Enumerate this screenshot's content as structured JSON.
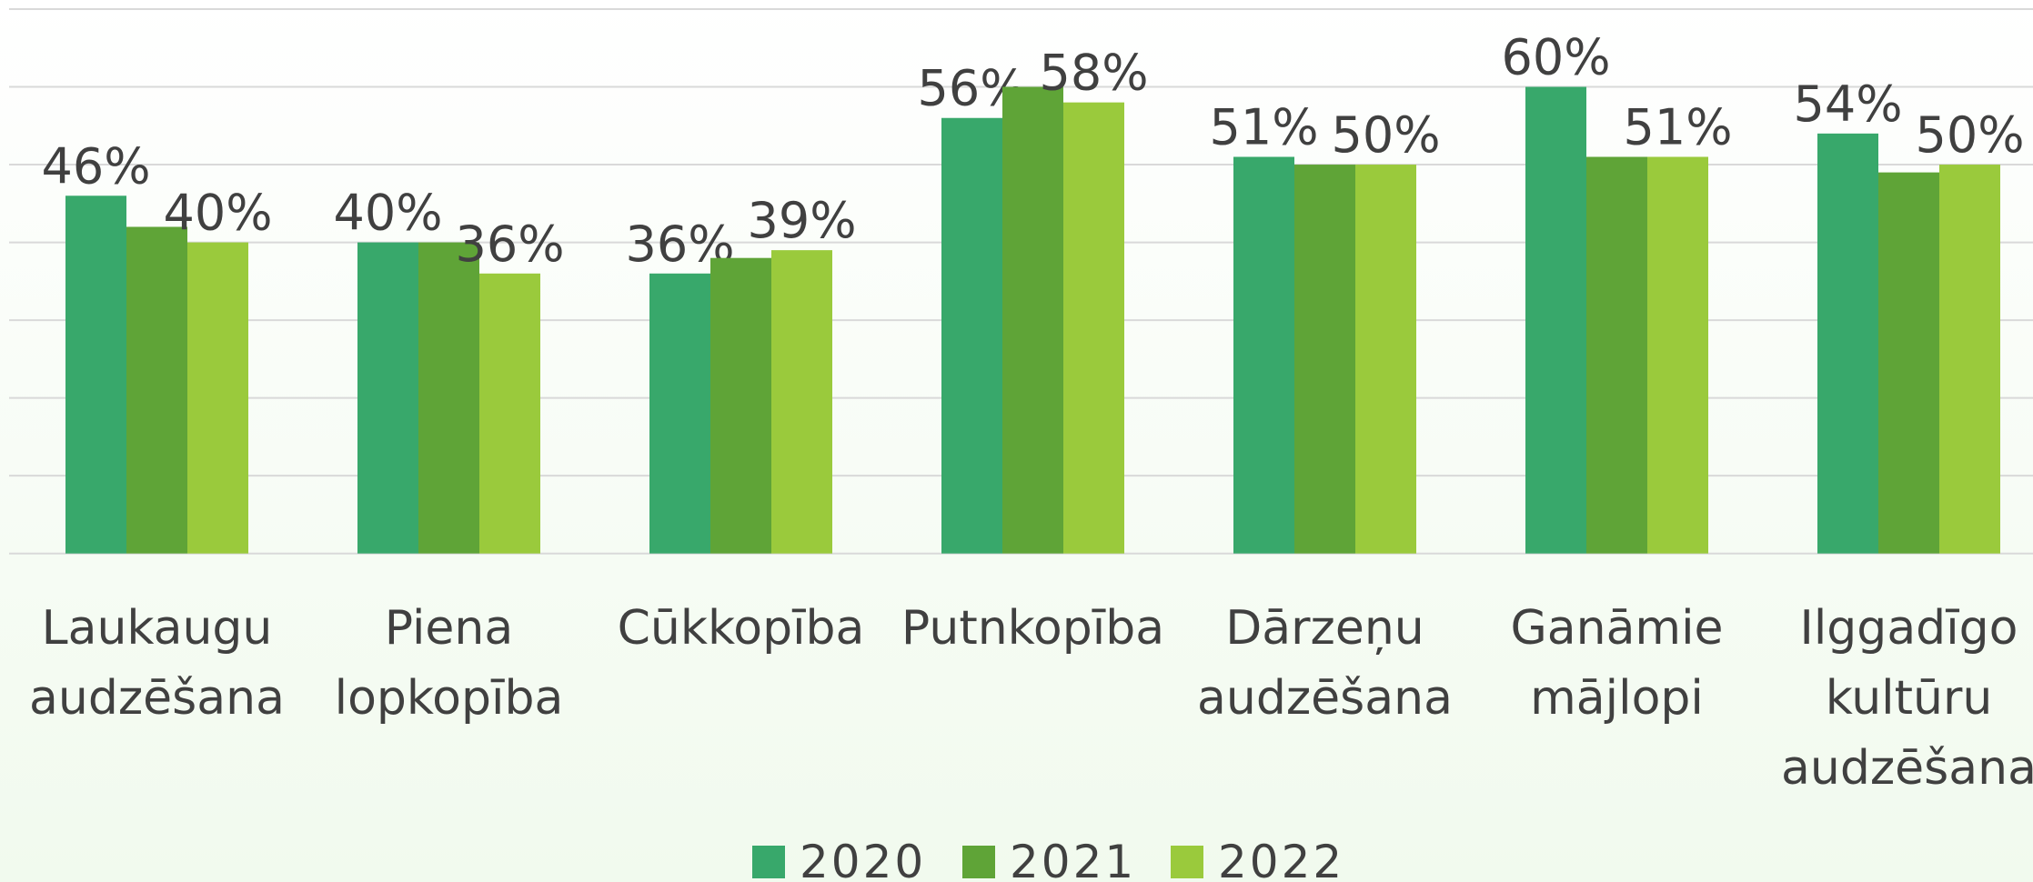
{
  "chart_data": {
    "type": "bar",
    "categories": [
      "Laukaugu audzēšana",
      "Piena lopkopība",
      "Cūkkopība",
      "Putnkopība",
      "Dārzeņu audzēšana",
      "Ganāmie mājlopi",
      "Ilggadīgo kultūru audzēšana"
    ],
    "series": [
      {
        "name": "2020",
        "color": "#38a86b",
        "values": [
          46,
          40,
          36,
          56,
          51,
          60,
          54
        ],
        "value_labels": [
          "46%",
          "40%",
          "36%",
          "56%",
          "51%",
          "60%",
          "54%"
        ]
      },
      {
        "name": "2021",
        "color": "#5fa437",
        "values": [
          42,
          40,
          38,
          60,
          50,
          51,
          49
        ]
      },
      {
        "name": "2022",
        "color": "#9aca3c",
        "values": [
          40,
          36,
          39,
          58,
          50,
          51,
          50
        ],
        "value_labels": [
          "40%",
          "36%",
          "39%",
          "58%",
          "50%",
          "51%",
          "50%"
        ]
      }
    ],
    "ylim": [
      0,
      70
    ],
    "yticks": [
      0,
      10,
      20,
      30,
      40,
      50,
      60,
      70
    ],
    "grid": true,
    "legend": "bottom"
  }
}
